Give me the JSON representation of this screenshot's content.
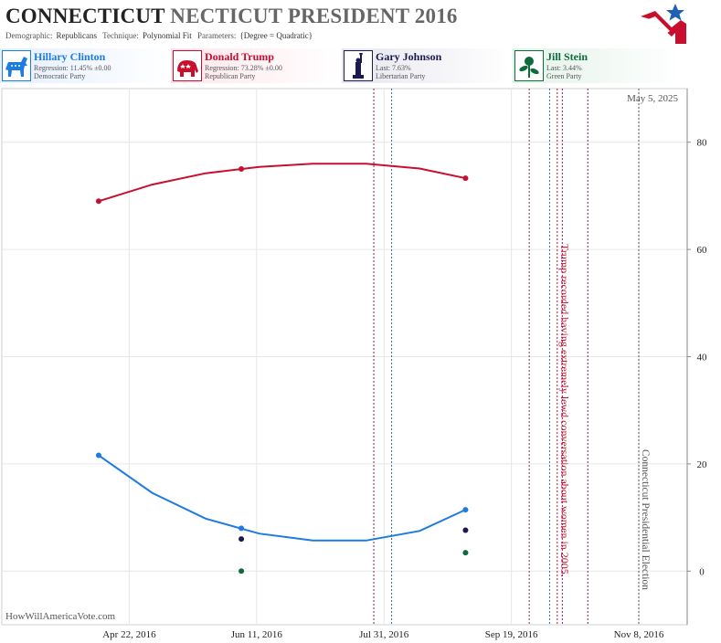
{
  "header": {
    "state": "CONNECTICUT",
    "title_rest": "NECTICUT PRESIDENT 2016",
    "demographic_label": "Demographic:",
    "demographic": "Republicans",
    "technique_label": "Technique:",
    "technique": "Polynomial Fit",
    "parameters_label": "Parameters:",
    "parameters": "{Degree = Quadratic}"
  },
  "candidates": [
    {
      "name": "Hillary Clinton",
      "line1": "Regression: 11.45% ±0.00",
      "line2": "Democratic Party",
      "color": "#1e7be0",
      "icon": "donkey-icon"
    },
    {
      "name": "Donald Trump",
      "line1": "Regression: 73.28% ±0.00",
      "line2": "Republican Party",
      "color": "#c8102e",
      "icon": "elephant-icon"
    },
    {
      "name": "Gary Johnson",
      "line1": "Last: 7.63%",
      "line2": "Libertarian Party",
      "color": "#1a1a4e",
      "icon": "liberty-statue-icon"
    },
    {
      "name": "Jill Stein",
      "line1": "Last: 3.44%",
      "line2": "Green Party",
      "color": "#0e6b3a",
      "icon": "rose-icon"
    }
  ],
  "watermark": "HowWillAmericaVote.com",
  "date_stamp": "May 5, 2025",
  "chart_data": {
    "type": "line",
    "x_ticks": [
      "Apr 22, 2016",
      "Jun 11, 2016",
      "Jul 31, 2016",
      "Sep 19, 2016",
      "Nov 8, 2016"
    ],
    "xlim": [
      "2016-03-03",
      "2016-11-27"
    ],
    "y_ticks": [
      0,
      20,
      40,
      60,
      80
    ],
    "ylim": [
      -10,
      90
    ],
    "grid": true,
    "series": [
      {
        "name": "Hillary Clinton",
        "color": "#1e7be0",
        "polls": [
          {
            "x": "2016-04-10",
            "y": 21.6
          },
          {
            "x": "2016-06-05",
            "y": 8.0
          },
          {
            "x": "2016-09-01",
            "y": 11.45
          }
        ],
        "fit": [
          {
            "x": "2016-04-10",
            "y": 21.6
          },
          {
            "x": "2016-05-01",
            "y": 14.6
          },
          {
            "x": "2016-05-22",
            "y": 9.8
          },
          {
            "x": "2016-06-12",
            "y": 7.0
          },
          {
            "x": "2016-07-03",
            "y": 5.7
          },
          {
            "x": "2016-07-24",
            "y": 5.7
          },
          {
            "x": "2016-08-14",
            "y": 7.5
          },
          {
            "x": "2016-09-01",
            "y": 11.45
          }
        ]
      },
      {
        "name": "Donald Trump",
        "color": "#c8102e",
        "polls": [
          {
            "x": "2016-04-10",
            "y": 69.0
          },
          {
            "x": "2016-06-05",
            "y": 75.0
          },
          {
            "x": "2016-09-01",
            "y": 73.28
          }
        ],
        "fit": [
          {
            "x": "2016-04-10",
            "y": 69.0
          },
          {
            "x": "2016-05-01",
            "y": 72.1
          },
          {
            "x": "2016-05-22",
            "y": 74.2
          },
          {
            "x": "2016-06-12",
            "y": 75.4
          },
          {
            "x": "2016-07-03",
            "y": 76.0
          },
          {
            "x": "2016-07-24",
            "y": 76.0
          },
          {
            "x": "2016-08-14",
            "y": 75.1
          },
          {
            "x": "2016-09-01",
            "y": 73.28
          }
        ]
      },
      {
        "name": "Gary Johnson",
        "color": "#1a1a4e",
        "polls": [
          {
            "x": "2016-06-05",
            "y": 6.0
          },
          {
            "x": "2016-09-01",
            "y": 7.63
          }
        ]
      },
      {
        "name": "Jill Stein",
        "color": "#0e6b3a",
        "polls": [
          {
            "x": "2016-06-05",
            "y": 0.0
          },
          {
            "x": "2016-09-01",
            "y": 3.44
          }
        ]
      }
    ],
    "events": [
      {
        "x": "2016-07-27",
        "color": "#8b1a5a",
        "label": ""
      },
      {
        "x": "2016-08-03",
        "color": "#2a6fa8",
        "label": ""
      },
      {
        "x": "2016-09-26",
        "color": "#9a2a5a",
        "label": ""
      },
      {
        "x": "2016-10-04",
        "color": "#2a6fa8",
        "label": ""
      },
      {
        "x": "2016-10-07",
        "color": "#c8102e",
        "label": "Trump recorded having extremely lewd conversation about women in 2005."
      },
      {
        "x": "2016-10-09",
        "color": "#8b1a5a",
        "label": ""
      },
      {
        "x": "2016-10-19",
        "color": "#8b1a5a",
        "label": ""
      },
      {
        "x": "2016-11-08",
        "color": "#555555",
        "label": "Connecticut Presidential Election"
      }
    ]
  }
}
